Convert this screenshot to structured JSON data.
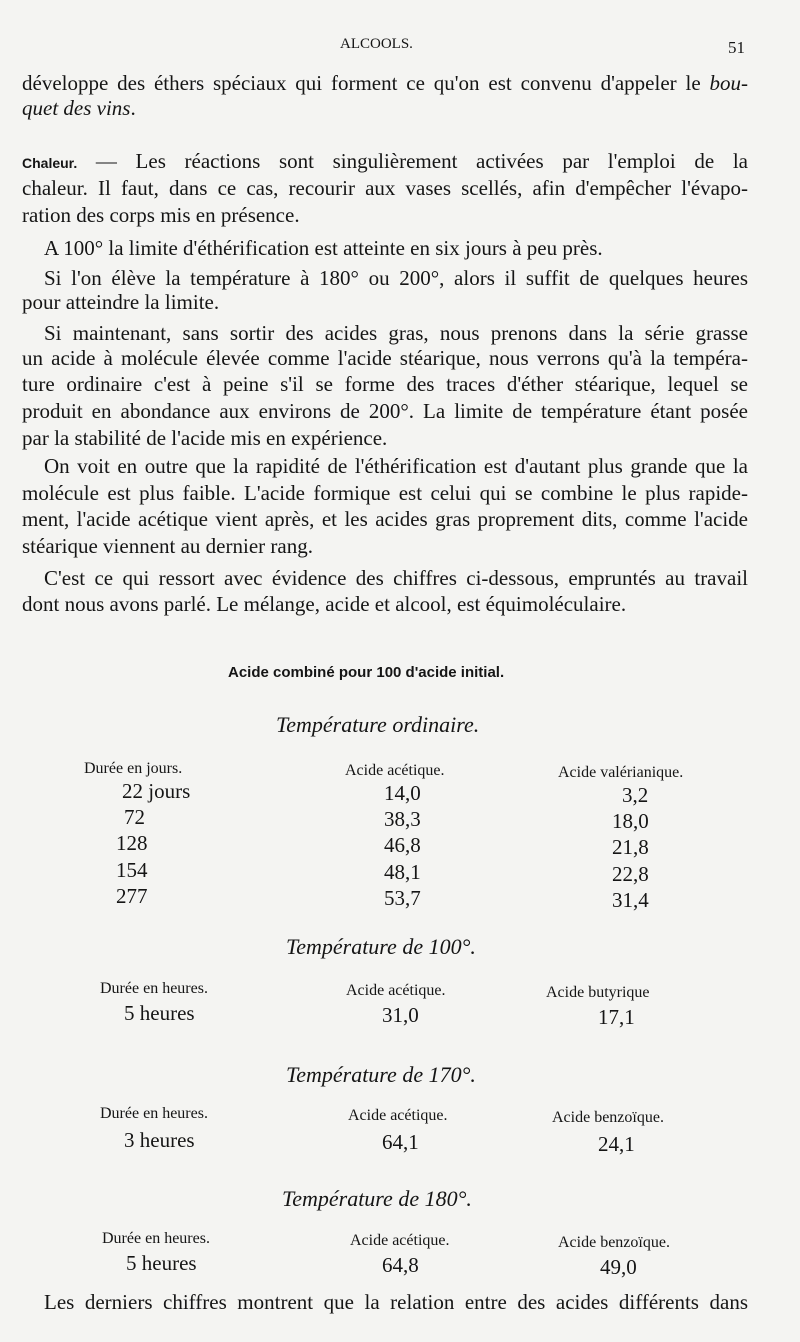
{
  "header": {
    "running_title": "ALCOOLS.",
    "page_number": "51"
  },
  "p1": [
    "développe des éthers spéciaux qui forment ce qu'on est convenu d'appeler le bou-",
    "quet des vins."
  ],
  "p1_italic": {
    "a": "bou-",
    "b": "quet des vins"
  },
  "p2_label": "Chaleur.",
  "p2": [
    " — Les réactions sont singulièrement activées par l'emploi de la",
    "chaleur. Il faut, dans ce cas, recourir aux vases scellés, afin d'empêcher l'évapo-",
    "ration des corps mis en présence."
  ],
  "p3": [
    "A 100° la limite d'éthérification est atteinte en six jours à peu près."
  ],
  "p4": [
    "Si l'on élève la température à 180° ou 200°, alors il suffit de quelques heures",
    "pour atteindre la limite."
  ],
  "p5": [
    "Si maintenant, sans sortir des acides gras, nous prenons dans la série grasse",
    "un acide à molécule élevée comme l'acide stéarique, nous verrons qu'à la tempéra-",
    "ture ordinaire c'est à peine s'il se forme des traces d'éther stéarique, lequel se",
    "produit en abondance aux environs de 200°. La limite de température étant posée",
    "par la stabilité de l'acide mis en expérience."
  ],
  "p6": [
    "On voit en outre que la rapidité de l'éthérification est d'autant plus grande que la",
    "molécule est plus faible. L'acide formique est celui qui se combine le plus rapide-",
    "ment, l'acide acétique vient après, et les acides gras proprement dits, comme l'acide",
    "stéarique viennent au dernier rang."
  ],
  "p7": [
    "C'est ce qui ressort avec évidence des chiffres ci-dessous, empruntés au travail",
    "dont nous avons parlé. Le mélange, acide et alcool, est équimoléculaire."
  ],
  "table_caption": "Acide combiné pour 100 d'acide initial.",
  "tables": [
    {
      "title": "Température ordinaire.",
      "headers": [
        "Durée en jours.",
        "Acide acétique.",
        "Acide valérianique."
      ],
      "rows": [
        [
          "22 jours",
          "14,0",
          "3,2"
        ],
        [
          "72",
          "38,3",
          "18,0"
        ],
        [
          "128",
          "46,8",
          "21,8"
        ],
        [
          "154",
          "48,1",
          "22,8"
        ],
        [
          "277",
          "53,7",
          "31,4"
        ]
      ]
    },
    {
      "title": "Température de 100°.",
      "headers": [
        "Durée en heures.",
        "Acide acétique.",
        "Acide butyrique"
      ],
      "rows": [
        [
          "5 heures",
          "31,0",
          "17,1"
        ]
      ]
    },
    {
      "title": "Température de 170°.",
      "headers": [
        "Durée en heures.",
        "Acide acétique.",
        "Acide benzoïque."
      ],
      "rows": [
        [
          "3 heures",
          "64,1",
          "24,1"
        ]
      ]
    },
    {
      "title": "Température de 180°.",
      "headers": [
        "Durée en heures.",
        "Acide acétique.",
        "Acide benzoïque."
      ],
      "rows": [
        [
          "5 heures",
          "64,8",
          "49,0"
        ]
      ]
    }
  ],
  "p8": [
    "Les derniers chiffres montrent que la relation entre des acides différents dans"
  ]
}
